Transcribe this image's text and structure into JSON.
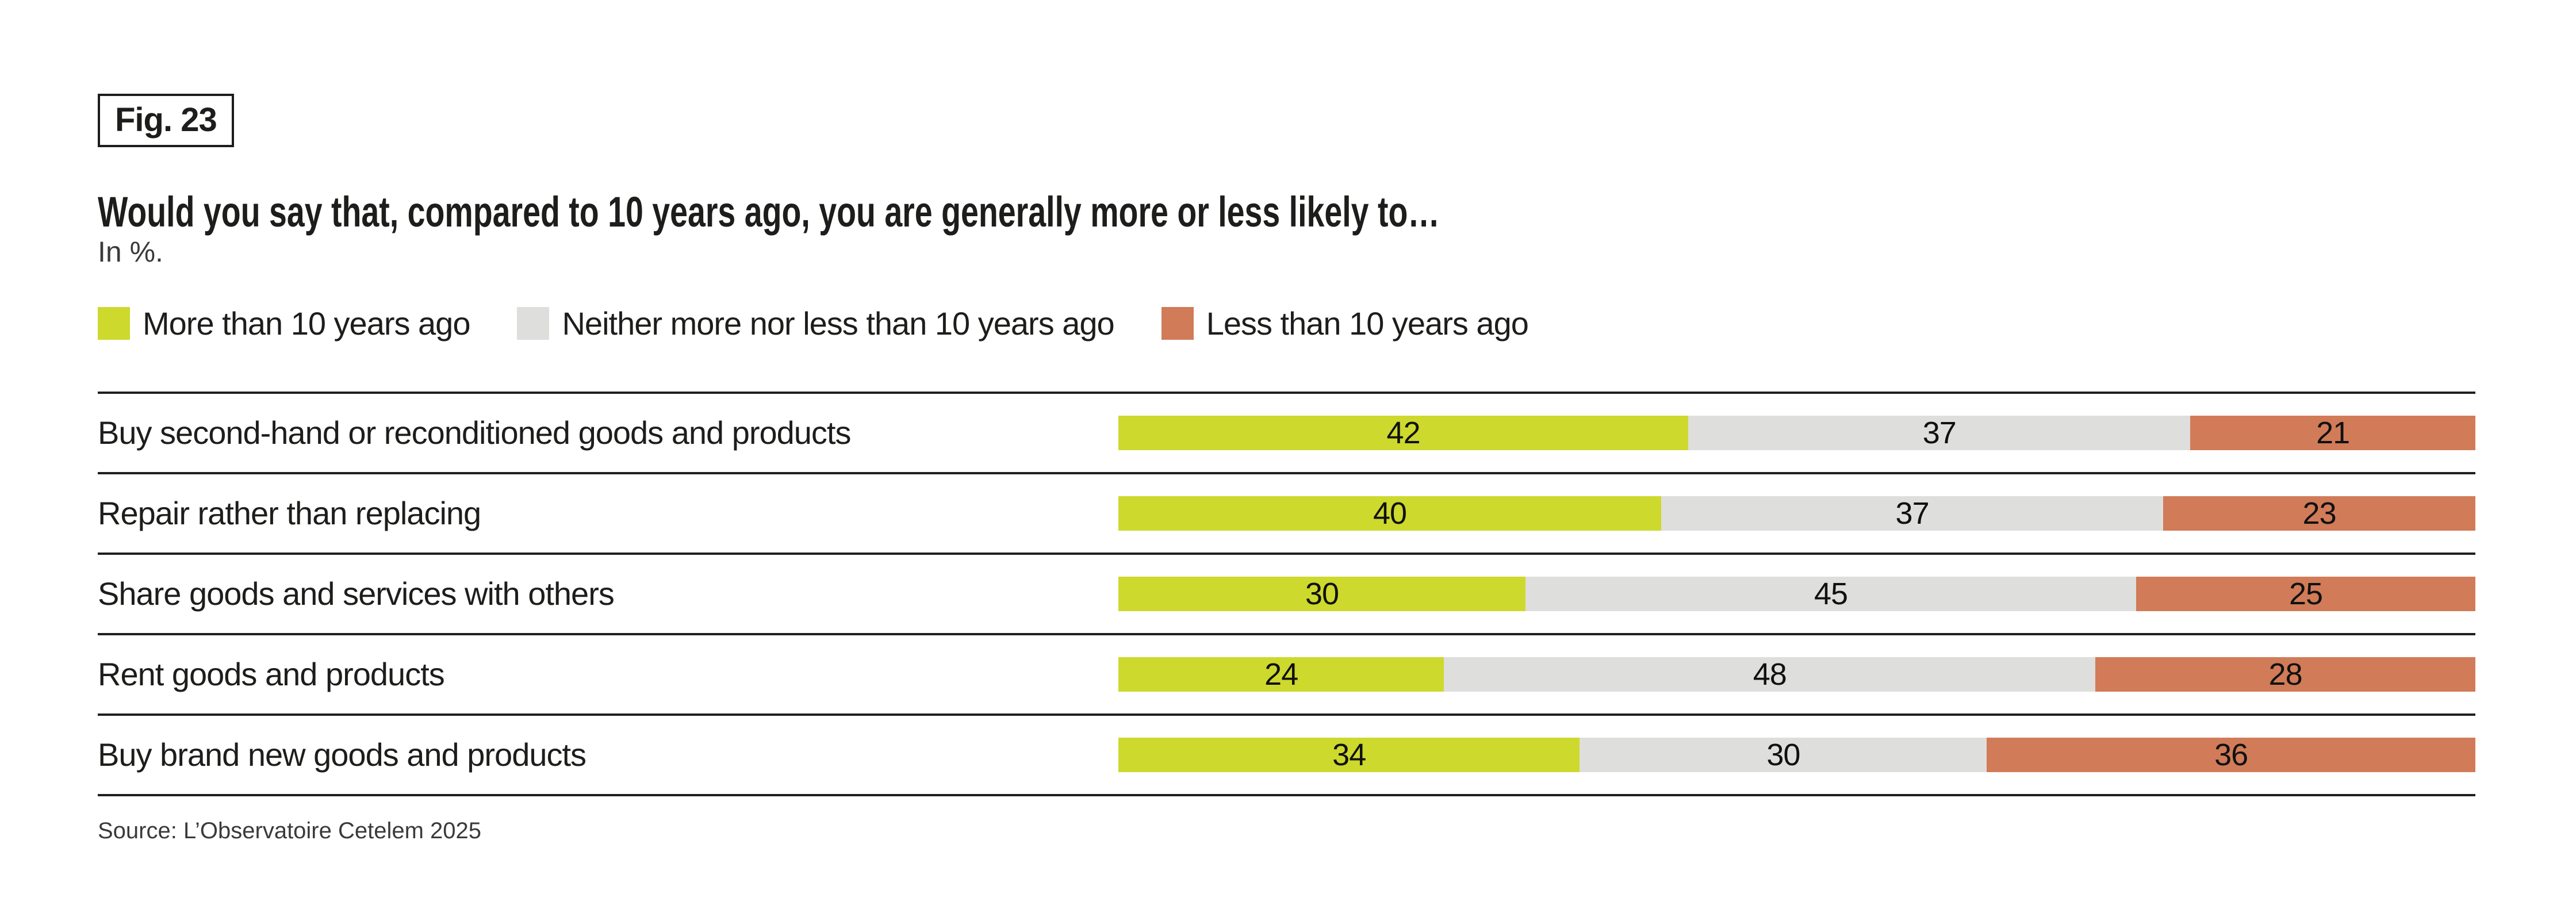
{
  "figure": {
    "label": "Fig. 23"
  },
  "header": {
    "title": "Would you say that, compared to 10 years ago, you are generally more or less likely to…",
    "unit_note": "In %."
  },
  "legend": {
    "items": [
      {
        "label": "More than 10 years ago",
        "color": "#cdd92d"
      },
      {
        "label": "Neither more nor less than 10 years ago",
        "color": "#dededc"
      },
      {
        "label": "Less than 10 years ago",
        "color": "#d17b58"
      }
    ]
  },
  "chart_data": {
    "type": "bar",
    "orientation": "horizontal",
    "stacked": true,
    "units": "%",
    "title": "Would you say that, compared to 10 years ago, you are generally more or less likely to…",
    "legend_position": "top",
    "value_labels": "inside-center",
    "xlim": [
      0,
      100
    ],
    "grid": false,
    "categories": [
      "Buy second-hand or reconditioned goods and products",
      "Repair rather than replacing",
      "Share goods and services with others",
      "Rent goods and products",
      "Buy brand new goods and products"
    ],
    "series": [
      {
        "name": "More than 10 years ago",
        "color": "#cdd92d",
        "values": [
          42,
          40,
          30,
          24,
          34
        ]
      },
      {
        "name": "Neither more nor less than 10 years ago",
        "color": "#dededc",
        "values": [
          37,
          37,
          45,
          48,
          30
        ]
      },
      {
        "name": "Less than 10 years ago",
        "color": "#d17b58",
        "values": [
          21,
          23,
          25,
          28,
          36
        ]
      }
    ],
    "rows": [
      {
        "label": "Buy second-hand or reconditioned goods and products",
        "values": [
          42,
          37,
          21
        ]
      },
      {
        "label": "Repair rather than replacing",
        "values": [
          40,
          37,
          23
        ]
      },
      {
        "label": "Share goods and services with others",
        "values": [
          30,
          45,
          25
        ]
      },
      {
        "label": "Rent goods and products",
        "values": [
          24,
          48,
          28
        ]
      },
      {
        "label": "Buy brand new goods and products",
        "values": [
          34,
          30,
          36
        ]
      }
    ]
  },
  "source": "Source: L’Observatoire Cetelem 2025",
  "colors": {
    "text": "#1d1d1b",
    "muted_text": "#3a3a38",
    "rule": "#1f1f1f",
    "background": "#ffffff"
  }
}
